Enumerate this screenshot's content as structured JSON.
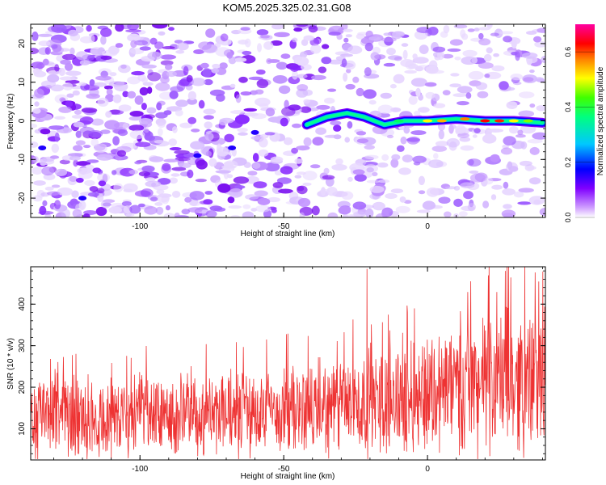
{
  "title": "KOM5.2025.325.02.31.G08",
  "chart_data": [
    {
      "type": "heatmap",
      "title": "KOM5.2025.325.02.31.G08",
      "xlabel": "Height of straight line (km)",
      "ylabel": "Frequency (Hz)",
      "xlim": [
        -138,
        41
      ],
      "ylim": [
        -25,
        25
      ],
      "x_ticks": [
        "-100",
        "-50",
        "0"
      ],
      "y_ticks": [
        "-20",
        "-10",
        "0",
        "10",
        "20"
      ],
      "colorbar": {
        "label": "Normalized spectral amplitude",
        "range": [
          0,
          0.7
        ],
        "ticks": [
          "0.0",
          "0.2",
          "0.4",
          "0.6"
        ],
        "colors": [
          "#ffffff",
          "#a040ff",
          "#0000ff",
          "#00ffff",
          "#00ff00",
          "#ffff00",
          "#ff0000",
          "#ff00a0"
        ]
      },
      "ridge": {
        "description_points": [
          {
            "x": -42,
            "y": -1
          },
          {
            "x": -35,
            "y": 1
          },
          {
            "x": -28,
            "y": 2
          },
          {
            "x": -22,
            "y": 1
          },
          {
            "x": -15,
            "y": -1
          },
          {
            "x": -8,
            "y": 0
          },
          {
            "x": 0,
            "y": 0
          },
          {
            "x": 10,
            "y": 0.5
          },
          {
            "x": 20,
            "y": 0
          },
          {
            "x": 30,
            "y": 0
          },
          {
            "x": 40,
            "y": -0.5
          }
        ]
      }
    },
    {
      "type": "line",
      "xlabel": "Height of straight line (km)",
      "ylabel": "SNR (10 * v/v)",
      "xlim": [
        -138,
        41
      ],
      "ylim": [
        25,
        490
      ],
      "x_ticks": [
        "-100",
        "-50",
        "0"
      ],
      "y_ticks": [
        "100",
        "200",
        "300",
        "400"
      ],
      "series_color": "#ee3333",
      "trend": [
        {
          "x": -138,
          "y": 130
        },
        {
          "x": -100,
          "y": 130
        },
        {
          "x": -50,
          "y": 140
        },
        {
          "x": -20,
          "y": 160
        },
        {
          "x": 0,
          "y": 190
        },
        {
          "x": 20,
          "y": 210
        },
        {
          "x": 41,
          "y": 220
        }
      ],
      "peaks": [
        {
          "x": -21,
          "y": 485
        },
        {
          "x": 27,
          "y": 480
        },
        {
          "x": 15,
          "y": 455
        }
      ]
    }
  ]
}
